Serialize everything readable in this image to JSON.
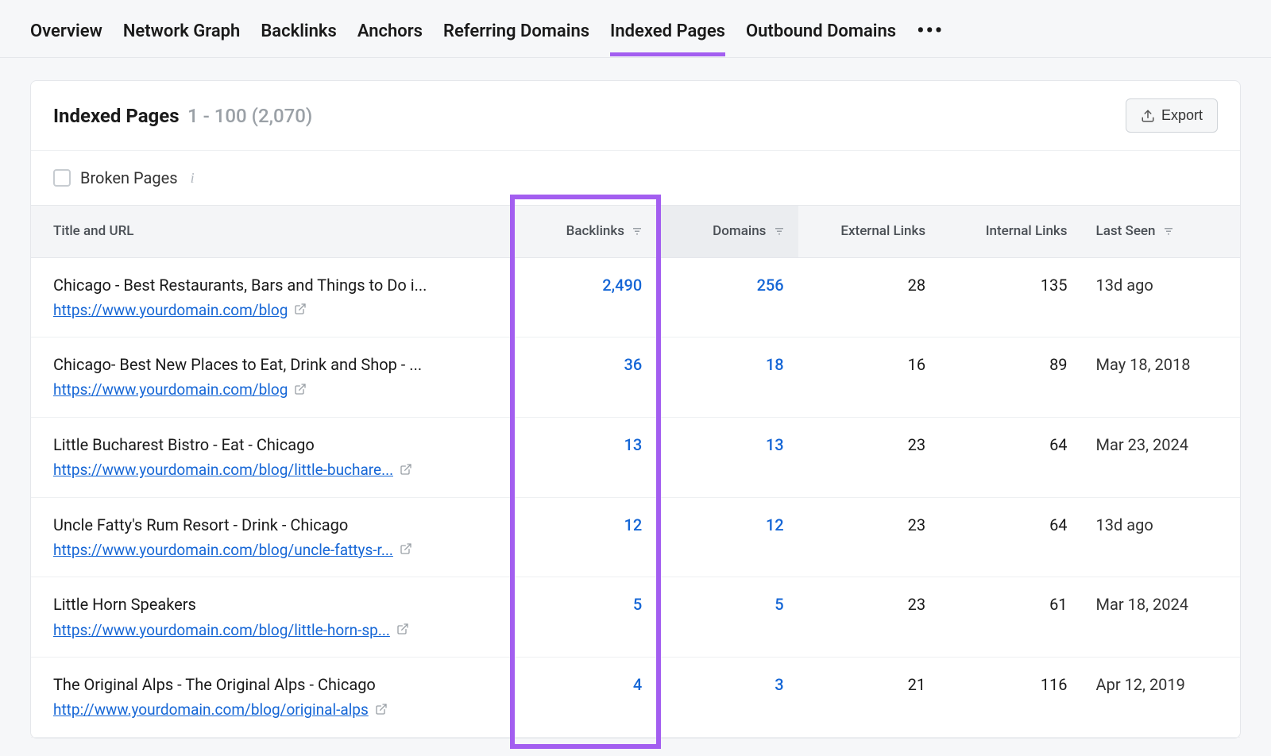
{
  "tabs": [
    {
      "label": "Overview"
    },
    {
      "label": "Network Graph"
    },
    {
      "label": "Backlinks"
    },
    {
      "label": "Anchors"
    },
    {
      "label": "Referring Domains"
    },
    {
      "label": "Indexed Pages"
    },
    {
      "label": "Outbound Domains"
    }
  ],
  "active_tab_index": 5,
  "panel": {
    "title": "Indexed Pages",
    "range": "1 - 100 (2,070)",
    "export_label": "Export"
  },
  "filter": {
    "broken_pages_label": "Broken Pages"
  },
  "columns": {
    "title_url": "Title and URL",
    "backlinks": "Backlinks",
    "domains": "Domains",
    "external": "External Links",
    "internal": "Internal Links",
    "last_seen": "Last Seen"
  },
  "rows": [
    {
      "title": "Chicago - Best Restaurants, Bars and Things to Do i...",
      "url": "https://www.yourdomain.com/blog",
      "backlinks": "2,490",
      "domains": "256",
      "external": "28",
      "internal": "135",
      "last_seen": "13d ago"
    },
    {
      "title": "Chicago- Best New Places to Eat, Drink and Shop - ...",
      "url": "https://www.yourdomain.com/blog",
      "backlinks": "36",
      "domains": "18",
      "external": "16",
      "internal": "89",
      "last_seen": "May 18, 2018"
    },
    {
      "title": "Little Bucharest Bistro - Eat - Chicago",
      "url": "https://www.yourdomain.com/blog/little-buchare...",
      "backlinks": "13",
      "domains": "13",
      "external": "23",
      "internal": "64",
      "last_seen": "Mar 23, 2024"
    },
    {
      "title": "Uncle Fatty's Rum Resort - Drink - Chicago",
      "url": "https://www.yourdomain.com/blog/uncle-fattys-r...",
      "backlinks": "12",
      "domains": "12",
      "external": "23",
      "internal": "64",
      "last_seen": "13d ago"
    },
    {
      "title": "Little Horn Speakers",
      "url": "https://www.yourdomain.com/blog/little-horn-sp...",
      "backlinks": "5",
      "domains": "5",
      "external": "23",
      "internal": "61",
      "last_seen": "Mar 18, 2024"
    },
    {
      "title": "The Original Alps - The Original Alps - Chicago",
      "url": "http://www.yourdomain.com/blog/original-alps",
      "backlinks": "4",
      "domains": "3",
      "external": "21",
      "internal": "116",
      "last_seen": "Apr 12, 2019"
    }
  ],
  "highlight": {
    "color": "#a35ef0",
    "column": "backlinks"
  }
}
